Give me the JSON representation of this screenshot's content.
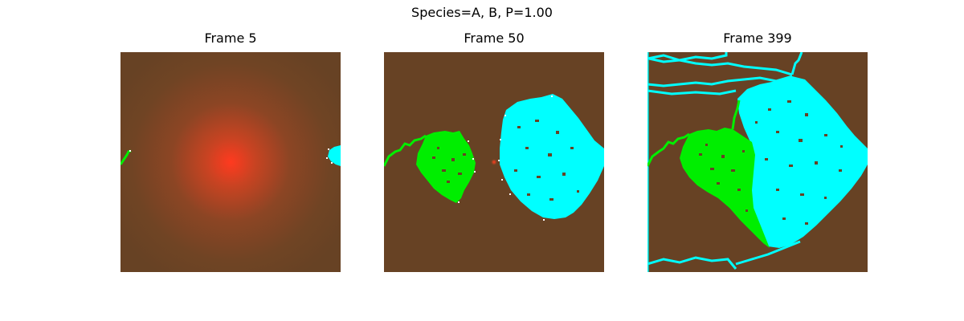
{
  "figure": {
    "suptitle": "Species=A, B, P=1.00"
  },
  "panels": [
    {
      "title": "Frame 5"
    },
    {
      "title": "Frame 50"
    },
    {
      "title": "Frame 399"
    }
  ],
  "colors": {
    "background_soil": "#674224",
    "species_a": "#00ee00",
    "species_b": "#00ffff",
    "edge_highlight": "#ffffff",
    "nutrient_glow": "#ff3a1f"
  }
}
